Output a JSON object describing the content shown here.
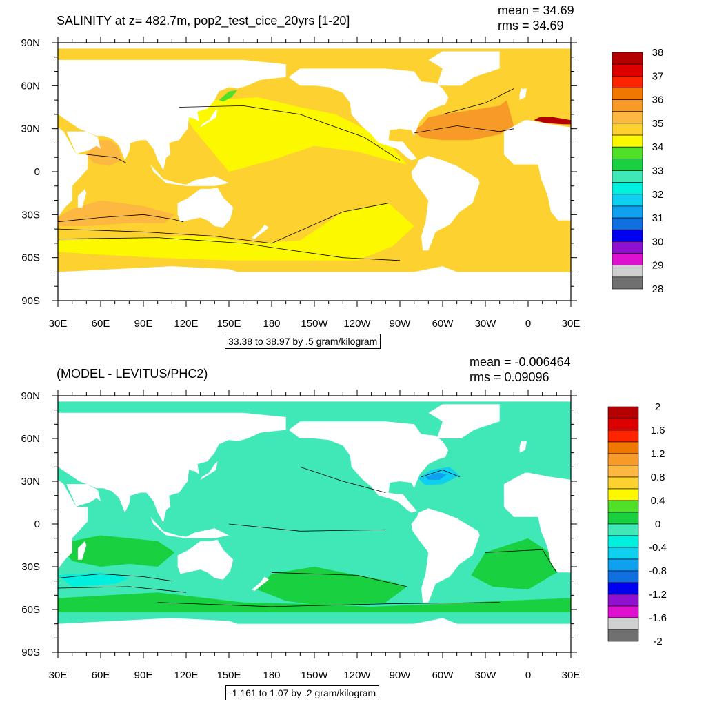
{
  "chart_data": [
    {
      "type": "heatmap",
      "title": "SALINITY at z= 482.7m, pop2_test_cice_20yrs [1-20]",
      "mean_label": "mean = 34.69",
      "rms_label": "rms = 34.69",
      "range_label": "33.38 to 38.97 by .5 gram/kilogram",
      "x_ticks": [
        "30E",
        "60E",
        "90E",
        "120E",
        "150E",
        "180",
        "150W",
        "120W",
        "90W",
        "60W",
        "30W",
        "0",
        "30E"
      ],
      "y_ticks": [
        "90N",
        "60N",
        "30N",
        "0",
        "30S",
        "60S",
        "90S"
      ],
      "colorbar_labels": [
        "38",
        "37",
        "36",
        "35",
        "34",
        "33",
        "32",
        "31",
        "30",
        "29",
        "28"
      ],
      "colorbar_colors": [
        "#b40000",
        "#dc0000",
        "#ff2400",
        "#f07800",
        "#f89a28",
        "#fcb840",
        "#fdd230",
        "#fcf800",
        "#50e028",
        "#18d040",
        "#40e8b8",
        "#00f0e0",
        "#10d0f0",
        "#10a0f0",
        "#1070e0",
        "#0000f0",
        "#9010d0",
        "#e010d0",
        "#d0d0d0",
        "#707070"
      ],
      "regions": [
        {
          "id": "ocean_base",
          "value": 34.8,
          "color": "#fdd230"
        },
        {
          "id": "pacific_central",
          "value": 34.4,
          "color": "#fcf800"
        },
        {
          "id": "southern_band",
          "value": 34.4,
          "color": "#fcf800"
        },
        {
          "id": "north_atlantic",
          "value": 35.8,
          "color": "#f89a28"
        },
        {
          "id": "arabian_sea",
          "value": 35.4,
          "color": "#fcb840"
        },
        {
          "id": "south_indian",
          "value": 35.2,
          "color": "#fcb840"
        },
        {
          "id": "mediterranean",
          "value": 37.5,
          "color": "#b40000"
        },
        {
          "id": "okhotsk",
          "value": 33.8,
          "color": "#50e028"
        }
      ]
    },
    {
      "type": "heatmap",
      "title": "(MODEL - LEVITUS/PHC2)",
      "mean_label": "mean = -0.006464",
      "rms_label": "rms = 0.09096",
      "range_label": "-1.161 to 1.07 by .2 gram/kilogram",
      "x_ticks": [
        "30E",
        "60E",
        "90E",
        "120E",
        "150E",
        "180",
        "150W",
        "120W",
        "90W",
        "60W",
        "30W",
        "0",
        "30E"
      ],
      "y_ticks": [
        "90N",
        "60N",
        "30N",
        "0",
        "30S",
        "60S",
        "90S"
      ],
      "colorbar_labels": [
        "2",
        "1.6",
        "1.2",
        "0.8",
        "0.4",
        "0",
        "-0.4",
        "-0.8",
        "-1.2",
        "-1.6",
        "-2"
      ],
      "colorbar_colors": [
        "#b40000",
        "#dc0000",
        "#ff2400",
        "#f07800",
        "#f89a28",
        "#fcb840",
        "#fdd230",
        "#fcf800",
        "#50e028",
        "#18d040",
        "#40e8b8",
        "#00f0e0",
        "#10d0f0",
        "#10a0f0",
        "#1070e0",
        "#0000f0",
        "#9010d0",
        "#e010d0",
        "#d0d0d0",
        "#707070"
      ],
      "regions": [
        {
          "id": "ocean_base",
          "value": -0.05,
          "color": "#40e8b8"
        },
        {
          "id": "indian_positive",
          "value": 0.1,
          "color": "#18d040"
        },
        {
          "id": "pacific_positive",
          "value": 0.1,
          "color": "#18d040"
        },
        {
          "id": "atlantic_positive",
          "value": 0.1,
          "color": "#18d040"
        },
        {
          "id": "southern_positive",
          "value": 0.1,
          "color": "#18d040"
        },
        {
          "id": "gulf_stream_negative",
          "value": -0.5,
          "color": "#10d0f0"
        },
        {
          "id": "gulf_stream_core",
          "value": -0.7,
          "color": "#10a0f0"
        },
        {
          "id": "indian_negative",
          "value": -0.3,
          "color": "#00f0e0"
        }
      ]
    }
  ]
}
